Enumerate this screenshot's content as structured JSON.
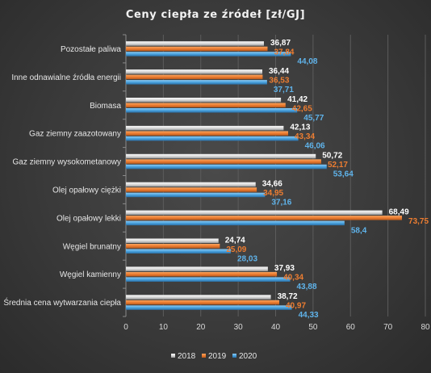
{
  "chart_data": {
    "type": "bar",
    "orientation": "horizontal",
    "title": "Ceny ciepła ze źródeł [zł/GJ]",
    "categories": [
      "Pozostałe paliwa",
      "Inne odnawialne źródła energii",
      "Biomasa",
      "Gaz ziemny zaazotowany",
      "Gaz ziemny wysokometanowy",
      "Olej opałowy ciężki",
      "Olej opałowy lekki",
      "Węgiel brunatny",
      "Węgiel kamienny",
      "Średnia cena wytwarzania ciepła"
    ],
    "series": [
      {
        "name": "2018",
        "color": "#e6e6e6",
        "label_color": "#ffffff",
        "values": [
          36.87,
          36.44,
          41.42,
          42.13,
          50.72,
          34.66,
          68.49,
          24.74,
          37.93,
          38.72
        ],
        "labels": [
          "36,87",
          "36,44",
          "41,42",
          "42,13",
          "50,72",
          "34,66",
          "68,49",
          "24,74",
          "37,93",
          "38,72"
        ]
      },
      {
        "name": "2019",
        "color": "#ed7d31",
        "label_color": "#ed7d31",
        "values": [
          37.84,
          36.53,
          42.65,
          43.34,
          52.17,
          34.95,
          73.75,
          25.09,
          40.34,
          40.97
        ],
        "labels": [
          "37,84",
          "36,53",
          "42,65",
          "43,34",
          "52,17",
          "34,95",
          "73,75",
          "25,09",
          "40,34",
          "40,97"
        ]
      },
      {
        "name": "2020",
        "color": "#4aa3df",
        "label_color": "#5fb3ea",
        "values": [
          44.08,
          37.71,
          45.77,
          46.06,
          53.64,
          37.16,
          58.4,
          28.03,
          43.88,
          44.33
        ],
        "labels": [
          "44,08",
          "37,71",
          "45,77",
          "46,06",
          "53,64",
          "37,16",
          "58,4",
          "28,03",
          "43,88",
          "44,33"
        ]
      }
    ],
    "xlim": [
      0,
      80
    ],
    "x_ticks": [
      "0",
      "10",
      "20",
      "30",
      "40",
      "50",
      "60",
      "70",
      "80"
    ],
    "grid": true,
    "legend_position": "bottom"
  }
}
